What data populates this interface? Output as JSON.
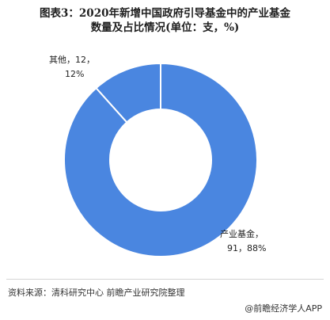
{
  "title_lines": [
    "图表3：2020年新增中国政府引导基金中的产业基金",
    "数量及占比情况(单位：支，%)"
  ],
  "chart_data": {
    "type": "pie",
    "donut": true,
    "slices": [
      {
        "name": "产业基金",
        "value": 91,
        "percent": 88,
        "label_line1": "产业基金，",
        "label_line2": "91，88%",
        "color": "#4a86e0"
      },
      {
        "name": "其他",
        "value": 12,
        "percent": 12,
        "label_line1": "其他，12，",
        "label_line2": "12%",
        "color": "#4a86e0"
      }
    ]
  },
  "source_text": "资料来源：清科研究中心 前瞻产业研究院整理",
  "brand_text": "@前瞻经济学人APP"
}
